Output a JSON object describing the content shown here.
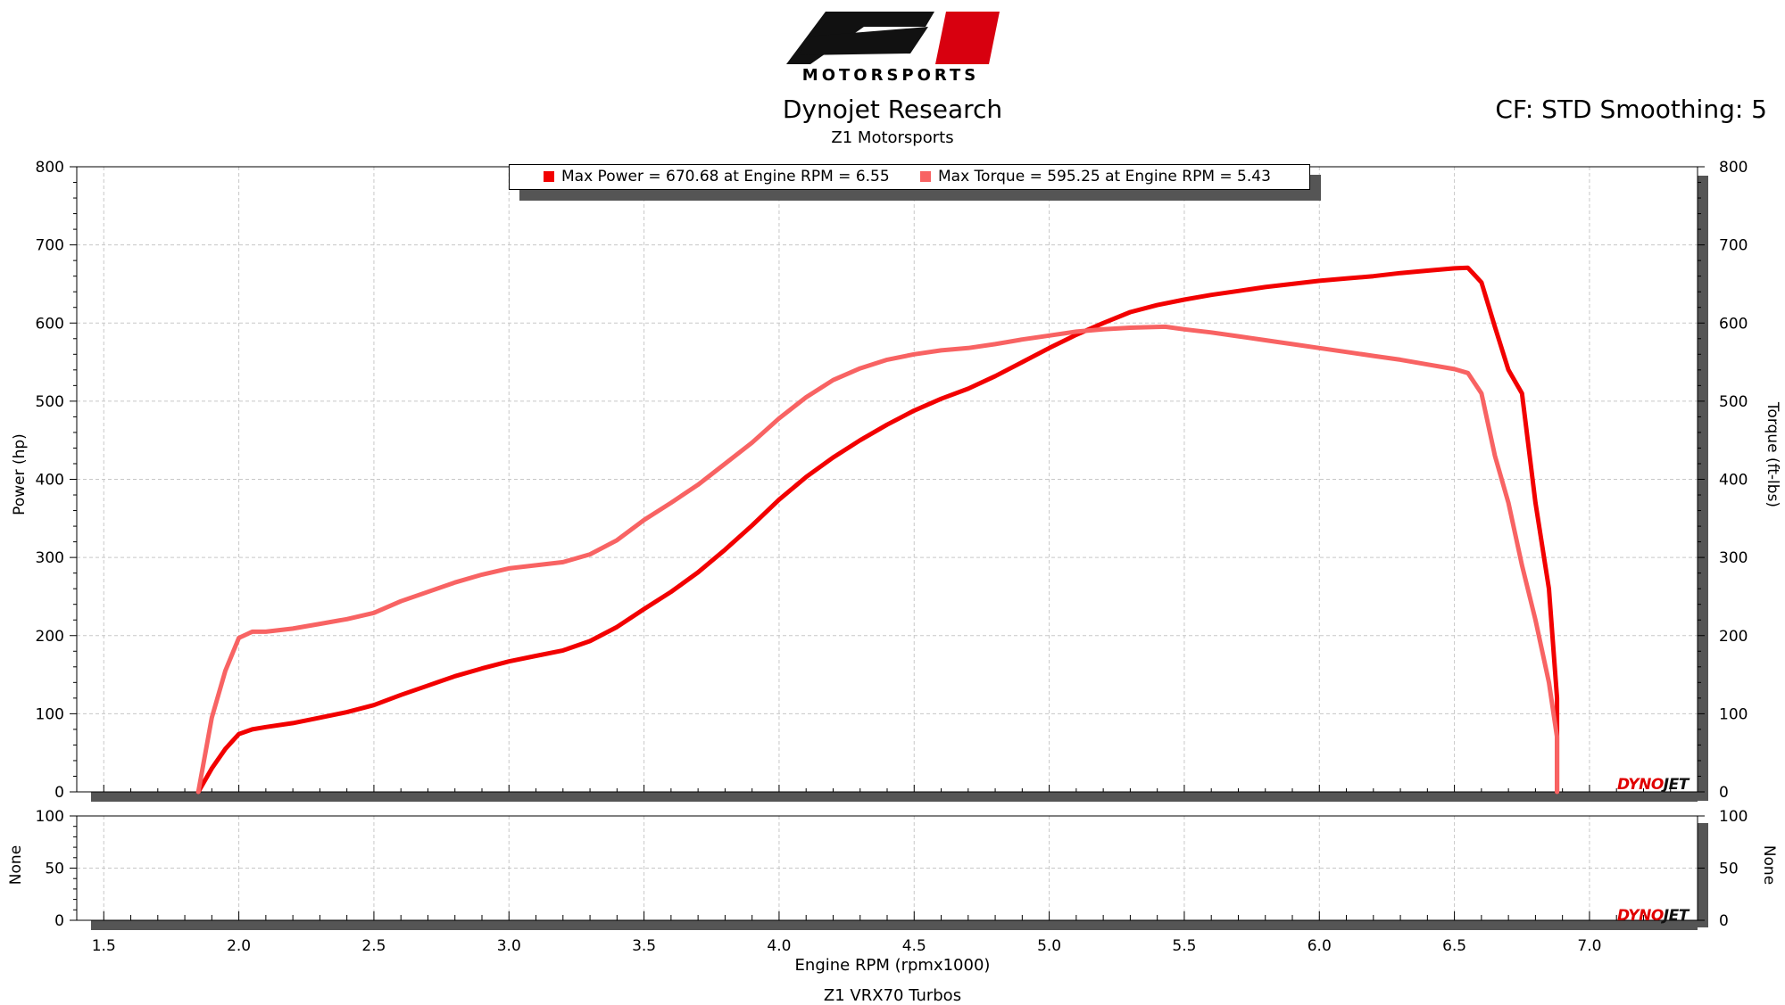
{
  "header": {
    "logo_text": "MOTORSPORTS",
    "title": "Dynojet Research",
    "subtitle": "Z1 Motorsports",
    "cf_smoothing": "CF: STD Smoothing: 5"
  },
  "footer": {
    "run_name": "Z1 VRX70 Turbos"
  },
  "brand_watermark": {
    "part1": "DYNO",
    "part2": "JET"
  },
  "colors": {
    "power": "#f20000",
    "torque": "#f86363",
    "grid": "#c8c8c8",
    "axis": "#000000",
    "shadow": "#555555"
  },
  "legend": [
    {
      "label": "Max Power = 670.68 at Engine RPM = 6.55",
      "color": "#f20000"
    },
    {
      "label": "Max Torque = 595.25 at Engine RPM = 5.43",
      "color": "#f86363"
    }
  ],
  "chart_data": [
    {
      "type": "line",
      "title": "Dynojet Research",
      "xlabel": "Engine RPM (rpmx1000)",
      "ylabel": "Power (hp)",
      "y2label": "Torque (ft-lbs)",
      "xlim": [
        1.4,
        7.4
      ],
      "ylim": [
        0,
        800
      ],
      "xticks": [
        "1.5",
        "2.0",
        "2.5",
        "3.0",
        "3.5",
        "4.0",
        "4.5",
        "5.0",
        "5.5",
        "6.0",
        "6.5",
        "7.0"
      ],
      "yticks": [
        "0",
        "100",
        "200",
        "300",
        "400",
        "500",
        "600",
        "700",
        "800"
      ],
      "grid": true,
      "legend_position": "top-center",
      "series": [
        {
          "name": "Power",
          "axis": "left",
          "color": "#f20000",
          "points": [
            [
              1.85,
              0
            ],
            [
              1.9,
              30
            ],
            [
              1.95,
              55
            ],
            [
              2.0,
              74
            ],
            [
              2.05,
              80
            ],
            [
              2.1,
              83
            ],
            [
              2.2,
              88
            ],
            [
              2.3,
              95
            ],
            [
              2.4,
              102
            ],
            [
              2.5,
              111
            ],
            [
              2.6,
              124
            ],
            [
              2.7,
              136
            ],
            [
              2.8,
              148
            ],
            [
              2.9,
              158
            ],
            [
              3.0,
              167
            ],
            [
              3.1,
              174
            ],
            [
              3.2,
              181
            ],
            [
              3.3,
              193
            ],
            [
              3.4,
              211
            ],
            [
              3.5,
              234
            ],
            [
              3.6,
              256
            ],
            [
              3.7,
              281
            ],
            [
              3.8,
              310
            ],
            [
              3.9,
              341
            ],
            [
              4.0,
              374
            ],
            [
              4.1,
              403
            ],
            [
              4.2,
              428
            ],
            [
              4.3,
              450
            ],
            [
              4.4,
              470
            ],
            [
              4.5,
              488
            ],
            [
              4.6,
              503
            ],
            [
              4.7,
              516
            ],
            [
              4.8,
              532
            ],
            [
              4.9,
              550
            ],
            [
              5.0,
              568
            ],
            [
              5.1,
              585
            ],
            [
              5.2,
              600
            ],
            [
              5.3,
              614
            ],
            [
              5.4,
              623
            ],
            [
              5.5,
              630
            ],
            [
              5.6,
              636
            ],
            [
              5.7,
              641
            ],
            [
              5.8,
              646
            ],
            [
              5.9,
              650
            ],
            [
              6.0,
              654
            ],
            [
              6.1,
              657
            ],
            [
              6.2,
              660
            ],
            [
              6.3,
              664
            ],
            [
              6.4,
              667
            ],
            [
              6.5,
              670
            ],
            [
              6.55,
              670.68
            ],
            [
              6.6,
              652
            ],
            [
              6.65,
              595
            ],
            [
              6.7,
              540
            ],
            [
              6.75,
              510
            ],
            [
              6.8,
              370
            ],
            [
              6.85,
              260
            ],
            [
              6.88,
              120
            ],
            [
              6.88,
              0
            ]
          ]
        },
        {
          "name": "Torque",
          "axis": "right",
          "color": "#f86363",
          "points": [
            [
              1.85,
              0
            ],
            [
              1.9,
              95
            ],
            [
              1.95,
              155
            ],
            [
              2.0,
              197
            ],
            [
              2.05,
              205
            ],
            [
              2.1,
              205
            ],
            [
              2.2,
              209
            ],
            [
              2.3,
              215
            ],
            [
              2.4,
              221
            ],
            [
              2.5,
              229
            ],
            [
              2.6,
              244
            ],
            [
              2.7,
              256
            ],
            [
              2.8,
              268
            ],
            [
              2.9,
              278
            ],
            [
              3.0,
              286
            ],
            [
              3.1,
              290
            ],
            [
              3.2,
              294
            ],
            [
              3.3,
              304
            ],
            [
              3.4,
              322
            ],
            [
              3.5,
              348
            ],
            [
              3.6,
              370
            ],
            [
              3.7,
              393
            ],
            [
              3.8,
              420
            ],
            [
              3.9,
              447
            ],
            [
              4.0,
              478
            ],
            [
              4.1,
              505
            ],
            [
              4.2,
              527
            ],
            [
              4.3,
              542
            ],
            [
              4.4,
              553
            ],
            [
              4.5,
              560
            ],
            [
              4.6,
              565
            ],
            [
              4.7,
              568
            ],
            [
              4.8,
              573
            ],
            [
              4.9,
              579
            ],
            [
              5.0,
              584
            ],
            [
              5.1,
              589
            ],
            [
              5.2,
              592
            ],
            [
              5.3,
              594
            ],
            [
              5.43,
              595.25
            ],
            [
              5.5,
              592
            ],
            [
              5.6,
              588
            ],
            [
              5.7,
              583
            ],
            [
              5.8,
              578
            ],
            [
              5.9,
              573
            ],
            [
              6.0,
              568
            ],
            [
              6.1,
              563
            ],
            [
              6.2,
              558
            ],
            [
              6.3,
              553
            ],
            [
              6.4,
              547
            ],
            [
              6.5,
              541
            ],
            [
              6.55,
              536
            ],
            [
              6.6,
              510
            ],
            [
              6.65,
              430
            ],
            [
              6.7,
              370
            ],
            [
              6.75,
              290
            ],
            [
              6.8,
              220
            ],
            [
              6.85,
              140
            ],
            [
              6.88,
              70
            ],
            [
              6.88,
              0
            ]
          ]
        }
      ]
    },
    {
      "type": "line",
      "xlabel": "Engine RPM (rpmx1000)",
      "ylabel": "None",
      "y2label": "None",
      "xlim": [
        1.4,
        7.4
      ],
      "ylim": [
        0,
        100
      ],
      "yticks": [
        "0",
        "50",
        "100"
      ],
      "grid": true,
      "series": []
    }
  ]
}
